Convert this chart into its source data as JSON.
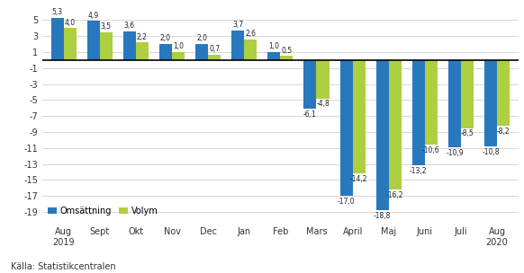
{
  "categories": [
    "Aug\n2019",
    "Sept",
    "Okt",
    "Nov",
    "Dec",
    "Jan",
    "Feb",
    "Mars",
    "April",
    "Maj",
    "Juni",
    "Juli",
    "Aug\n2020"
  ],
  "omsattning": [
    5.3,
    4.9,
    3.6,
    2.0,
    2.0,
    3.7,
    1.0,
    -6.1,
    -17.0,
    -18.8,
    -13.2,
    -10.9,
    -10.8
  ],
  "volym": [
    4.0,
    3.5,
    2.2,
    1.0,
    0.7,
    2.6,
    0.5,
    -4.8,
    -14.2,
    -16.2,
    -10.6,
    -8.5,
    -8.2
  ],
  "color_omsattning": "#2878BE",
  "color_volym": "#AECF3F",
  "ylim": [
    -20.5,
    6.5
  ],
  "yticks": [
    -19,
    -17,
    -15,
    -13,
    -11,
    -9,
    -7,
    -5,
    -3,
    -1,
    1,
    3,
    5
  ],
  "legend_omsattning": "Omsättning",
  "legend_volym": "Volym",
  "source": "Källa: Statistikcentralen",
  "background_color": "#ffffff",
  "grid_color": "#d0d0d0"
}
